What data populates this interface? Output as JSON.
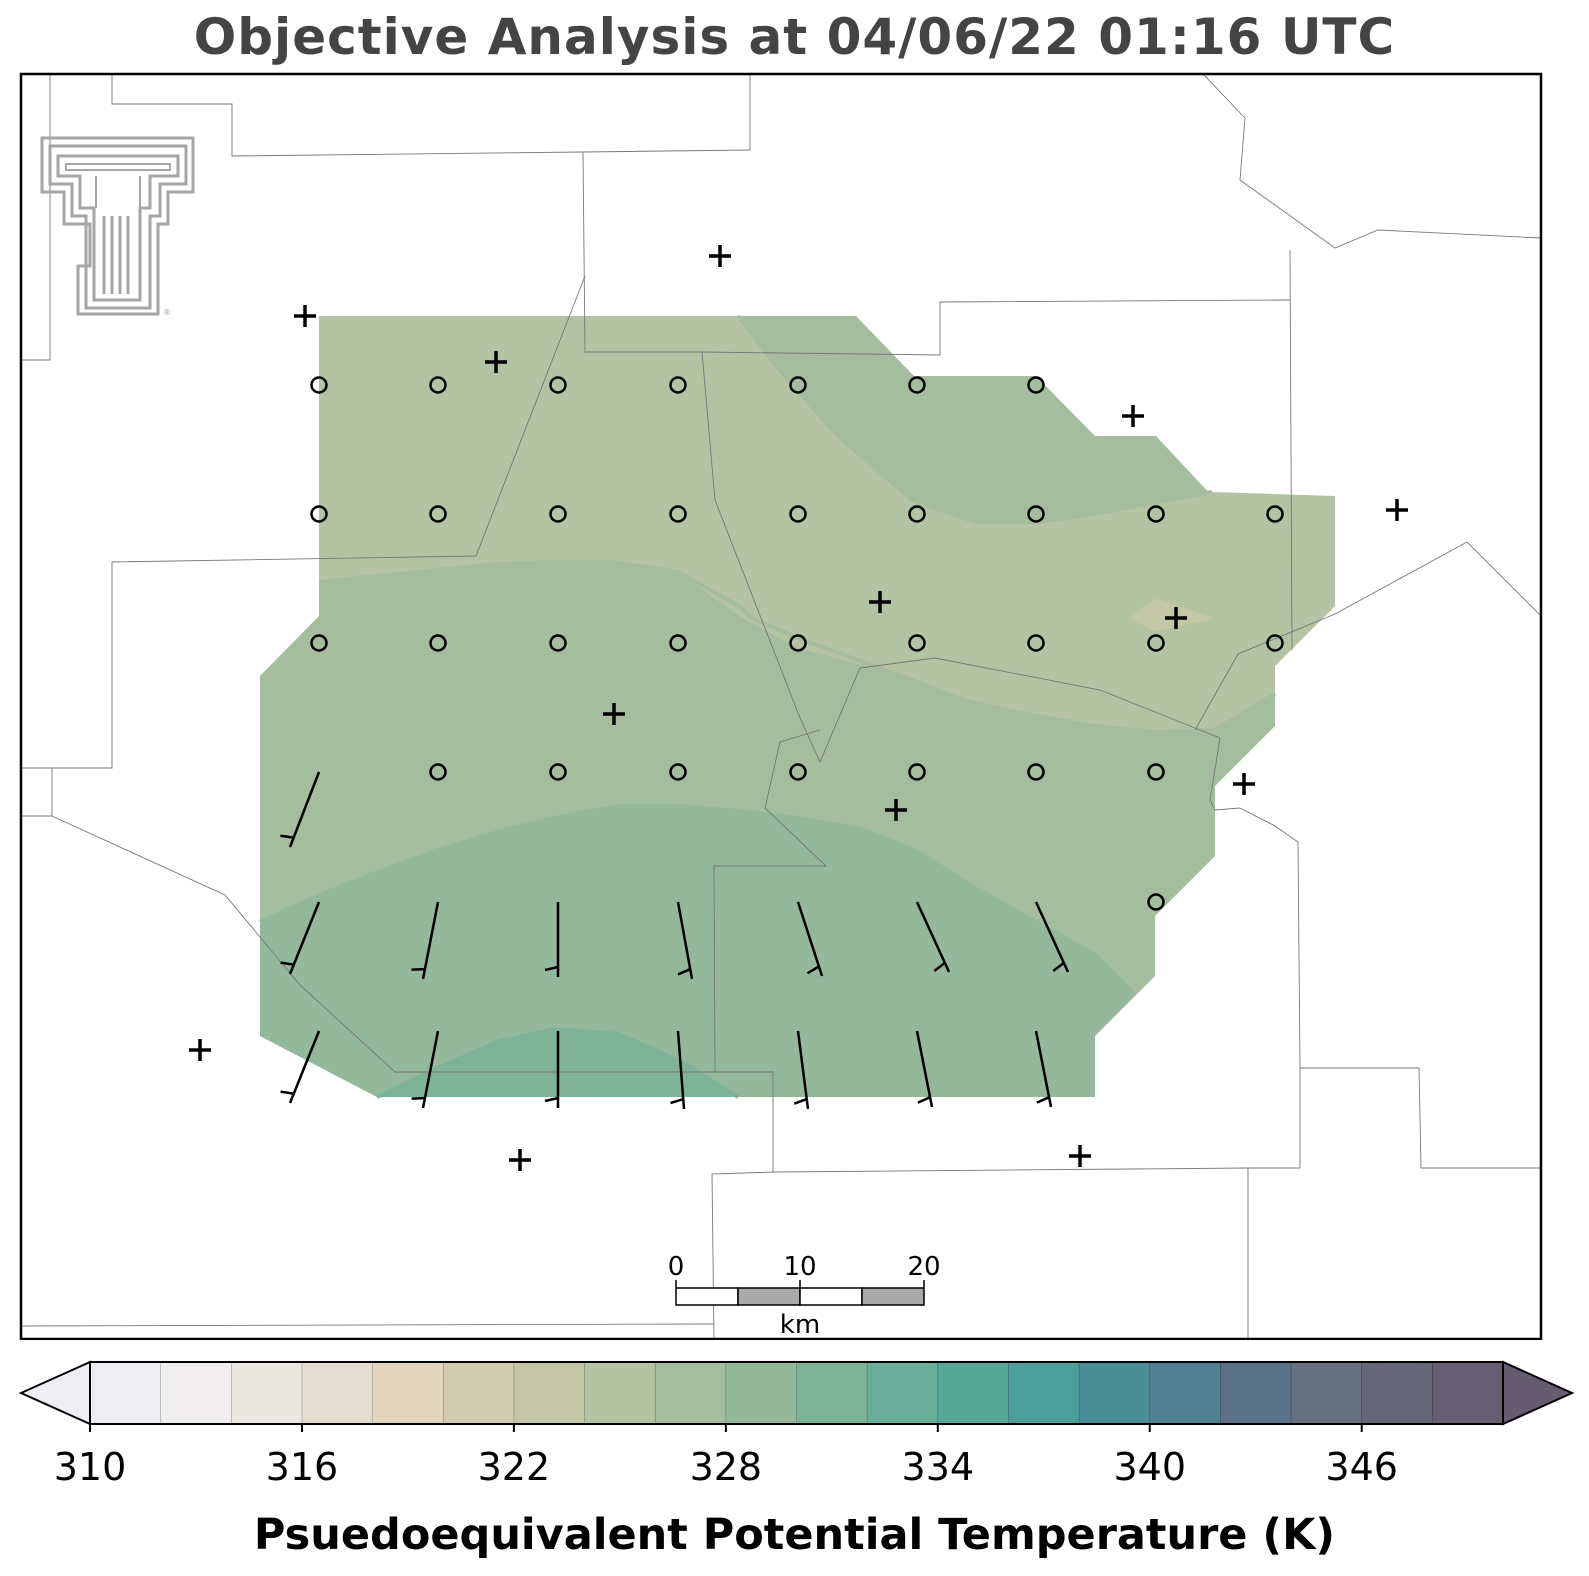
{
  "title": "Objective Analysis at 04/06/22 01:16 UTC",
  "logo": {
    "name": "texas-tech-double-t-logo",
    "color": "#a6a6a6",
    "mark": "®"
  },
  "scale_bar": {
    "labels": [
      "0",
      "10",
      "20"
    ],
    "unit": "km"
  },
  "colorbar": {
    "label": "Psuedoequivalent Potential Temperature (K)",
    "min": 310,
    "max": 350,
    "step": 2,
    "tick_values": [
      310,
      316,
      322,
      328,
      334,
      340,
      346
    ],
    "tick_labels": [
      "310",
      "316",
      "322",
      "328",
      "334",
      "340",
      "346"
    ],
    "colors": [
      "#ededf2",
      "#efedee",
      "#eae6e2",
      "#e6dbcf",
      "#e3d5c0",
      "#d2cbad",
      "#c3c7a6",
      "#b4c3a4",
      "#a3bd9e",
      "#93b89a",
      "#7fb398",
      "#6aae99",
      "#58a89a",
      "#4c9e9b",
      "#4b8e97",
      "#517f93",
      "#5c718a",
      "#657180",
      "#656778",
      "#665f73",
      "#655c72"
    ]
  },
  "contour_levels": [
    324,
    326,
    328,
    330
  ],
  "contour_regions": [
    {
      "level_range": "324-326",
      "color": "#a3bd9e"
    },
    {
      "level_range": "322-324",
      "color": "#b4c3a4"
    },
    {
      "level_range": "326-328",
      "color": "#93b89a"
    },
    {
      "level_range": "328-330",
      "color": "#7fb398"
    }
  ],
  "station_marker": "+",
  "calm_marker": "o",
  "wind_barbs": {
    "half_barb_knots": 5,
    "units": "knots"
  }
}
